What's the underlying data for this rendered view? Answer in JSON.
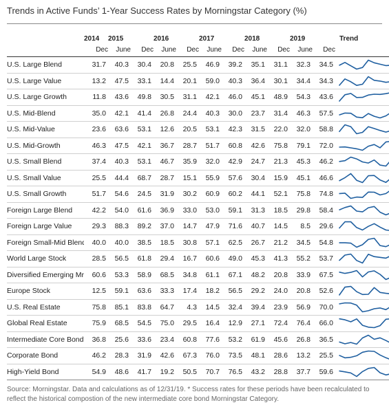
{
  "title": "Trends in Active Funds’ 1-Year Success Rates by Morningstar Category (%)",
  "trend_label": "Trend",
  "source": "Source: Morningstar. Data and calculations as of 12/31/19. * Success rates for these periods have been recalculated to reflect the historical compostion of the new intermediate core bond Morningstar Category.",
  "colors": {
    "sparkline": "#1f5fa0",
    "rule": "#333333"
  },
  "chart_data": {
    "type": "table",
    "year_groups": [
      {
        "year": "2014",
        "span": 1
      },
      {
        "year": "2015",
        "span": 2
      },
      {
        "year": "2016",
        "span": 2
      },
      {
        "year": "2017",
        "span": 2
      },
      {
        "year": "2018",
        "span": 2
      },
      {
        "year": "2019",
        "span": 2
      }
    ],
    "periods": [
      "Dec",
      "June",
      "Dec",
      "June",
      "Dec",
      "June",
      "Dec",
      "June",
      "Dec",
      "June",
      "Dec"
    ],
    "rows": [
      {
        "category": "U.S. Large Blend",
        "values": [
          "31.7",
          "40.3",
          "30.4",
          "20.8",
          "25.5",
          "46.9",
          "39.2",
          "35.1",
          "31.1",
          "32.3",
          "34.5"
        ]
      },
      {
        "category": "U.S. Large Value",
        "values": [
          "13.2",
          "47.5",
          "33.1",
          "14.4",
          "20.1",
          "59.0",
          "40.3",
          "36.4",
          "30.1",
          "34.4",
          "34.3"
        ]
      },
      {
        "category": "U.S. Large Growth",
        "values": [
          "11.8",
          "43.6",
          "49.8",
          "30.5",
          "31.1",
          "42.1",
          "46.0",
          "45.1",
          "48.9",
          "54.3",
          "43.6"
        ]
      },
      {
        "category": "U.S. Mid-Blend",
        "values": [
          "35.0",
          "42.1",
          "41.4",
          "26.8",
          "24.4",
          "40.3",
          "30.0",
          "23.7",
          "31.4",
          "46.3",
          "57.5"
        ]
      },
      {
        "category": "U.S. Mid-Value",
        "values": [
          "23.6",
          "63.6",
          "53.1",
          "12.6",
          "20.5",
          "53.1",
          "42.3",
          "31.5",
          "22.0",
          "32.0",
          "58.8"
        ]
      },
      {
        "category": "U.S. Mid-Growth",
        "values": [
          "46.3",
          "47.5",
          "42.1",
          "36.7",
          "28.7",
          "51.7",
          "60.8",
          "42.6",
          "75.8",
          "79.1",
          "72.0"
        ]
      },
      {
        "category": "U.S. Small Blend",
        "values": [
          "37.4",
          "40.3",
          "53.1",
          "46.7",
          "35.9",
          "32.0",
          "42.9",
          "24.7",
          "21.3",
          "45.3",
          "46.2"
        ]
      },
      {
        "category": "U.S. Small Value",
        "values": [
          "25.5",
          "44.4",
          "68.7",
          "28.7",
          "15.1",
          "55.9",
          "57.6",
          "30.4",
          "15.9",
          "45.1",
          "46.6"
        ]
      },
      {
        "category": "U.S. Small Growth",
        "values": [
          "51.7",
          "54.6",
          "24.5",
          "31.9",
          "30.2",
          "60.9",
          "60.2",
          "44.1",
          "52.1",
          "75.8",
          "74.8"
        ]
      },
      {
        "category": "Foreign Large Blend",
        "values": [
          "42.2",
          "54.0",
          "61.6",
          "36.9",
          "33.0",
          "53.0",
          "59.1",
          "31.3",
          "18.5",
          "29.8",
          "58.4"
        ]
      },
      {
        "category": "Foreign Large Value",
        "values": [
          "29.3",
          "88.3",
          "89.2",
          "37.0",
          "14.7",
          "47.9",
          "71.6",
          "40.7",
          "14.5",
          "8.5",
          "29.6"
        ]
      },
      {
        "category": "Foreign Small-Mid Blend",
        "values": [
          "40.0",
          "40.0",
          "38.5",
          "18.5",
          "30.8",
          "57.1",
          "62.5",
          "26.7",
          "21.2",
          "34.5",
          "54.8"
        ]
      },
      {
        "category": "World Large Stock",
        "values": [
          "28.5",
          "56.5",
          "61.8",
          "29.4",
          "16.7",
          "60.6",
          "49.0",
          "45.3",
          "41.3",
          "55.2",
          "53.7"
        ]
      },
      {
        "category": "Diversified Emerging Mrkts",
        "values": [
          "60.6",
          "53.3",
          "58.9",
          "68.5",
          "34.8",
          "61.1",
          "67.1",
          "48.2",
          "20.8",
          "33.9",
          "67.5"
        ]
      },
      {
        "category": "Europe Stock",
        "values": [
          "12.5",
          "59.1",
          "63.6",
          "33.3",
          "17.4",
          "18.2",
          "56.5",
          "29.2",
          "24.0",
          "20.8",
          "52.6"
        ]
      },
      {
        "category": "U.S. Real Estate",
        "values": [
          "75.8",
          "85.1",
          "83.8",
          "64.7",
          "4.3",
          "14.5",
          "32.4",
          "39.4",
          "23.9",
          "56.9",
          "70.0"
        ]
      },
      {
        "category": "Global Real Estate",
        "values": [
          "75.9",
          "68.5",
          "54.5",
          "75.0",
          "29.5",
          "16.4",
          "12.9",
          "27.1",
          "72.4",
          "76.4",
          "66.0"
        ]
      },
      {
        "category": "Intermediate Core Bond*",
        "values": [
          "36.8",
          "25.6",
          "33.6",
          "23.4",
          "60.8",
          "77.6",
          "53.2",
          "61.9",
          "45.6",
          "26.8",
          "36.5"
        ]
      },
      {
        "category": "Corporate Bond",
        "values": [
          "46.2",
          "28.3",
          "31.9",
          "42.6",
          "67.3",
          "76.0",
          "73.5",
          "48.1",
          "28.6",
          "13.2",
          "25.5"
        ]
      },
      {
        "category": "High-Yield Bond",
        "values": [
          "54.9",
          "48.6",
          "41.7",
          "19.2",
          "50.5",
          "70.7",
          "76.5",
          "43.2",
          "28.8",
          "37.7",
          "59.6"
        ]
      }
    ]
  }
}
